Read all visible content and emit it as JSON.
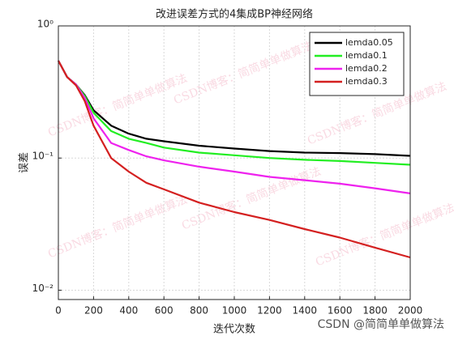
{
  "chart_data": {
    "type": "line",
    "title": "改进误差方式的4集成BP神经网络",
    "x_label": "迭代次数",
    "y_label": "误差",
    "x": [
      0,
      50,
      100,
      150,
      200,
      300,
      400,
      500,
      600,
      800,
      1000,
      1200,
      1400,
      1600,
      1800,
      2000
    ],
    "series": [
      {
        "name": "lemda0.05",
        "color": "#000000",
        "values": [
          0.545,
          0.41,
          0.36,
          0.3,
          0.23,
          0.176,
          0.153,
          0.14,
          0.134,
          0.124,
          0.118,
          0.113,
          0.11,
          0.109,
          0.107,
          0.104
        ]
      },
      {
        "name": "lemda0.1",
        "color": "#22ee22",
        "values": [
          0.545,
          0.41,
          0.36,
          0.295,
          0.22,
          0.16,
          0.14,
          0.13,
          0.12,
          0.11,
          0.105,
          0.1,
          0.097,
          0.095,
          0.092,
          0.089
        ]
      },
      {
        "name": "lemda0.2",
        "color": "#ee22ee",
        "values": [
          0.545,
          0.41,
          0.36,
          0.285,
          0.2,
          0.13,
          0.115,
          0.103,
          0.096,
          0.086,
          0.079,
          0.072,
          0.068,
          0.064,
          0.059,
          0.054
        ]
      },
      {
        "name": "lemda0.3",
        "color": "#d42020",
        "values": [
          0.545,
          0.41,
          0.355,
          0.27,
          0.176,
          0.1,
          0.079,
          0.065,
          0.058,
          0.046,
          0.039,
          0.034,
          0.029,
          0.025,
          0.021,
          0.0177
        ]
      }
    ],
    "xlim": [
      0,
      2000
    ],
    "xticks": [
      0,
      200,
      400,
      600,
      800,
      1000,
      1200,
      1400,
      1600,
      1800,
      2000
    ],
    "ylim": [
      0.0085,
      1
    ],
    "log_y": true,
    "yticks": [
      {
        "value": 0.01,
        "label": "10⁻²"
      },
      {
        "value": 0.1,
        "label": "10⁻¹"
      },
      {
        "value": 1,
        "label": "10⁰"
      }
    ],
    "grid": true,
    "legend": "northeast",
    "watermark": "CSDN博客：简简单单做算法",
    "credit": "CSDN @简简单单做算法"
  }
}
